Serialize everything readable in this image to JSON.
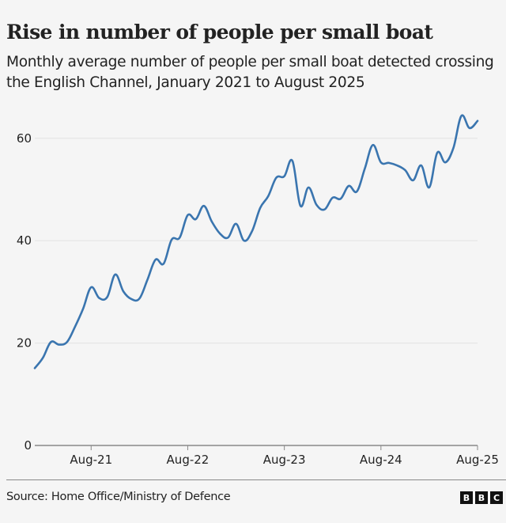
{
  "header": {
    "title": "Rise in number of people per small boat",
    "subtitle": "Monthly average number of people per small boat detected crossing the English Channel, January 2021 to August 2025"
  },
  "footer": {
    "source": "Source: Home Office/Ministry of Defence",
    "logo_letters": [
      "B",
      "B",
      "C"
    ]
  },
  "colors": {
    "line": "#3a75af",
    "gridline": "#e3e3e3",
    "axis": "#8a8a8a",
    "background": "#f5f5f5"
  },
  "chart_data": {
    "type": "line",
    "title": "Rise in number of people per small boat",
    "subtitle": "Monthly average number of people per small boat detected crossing the English Channel, January 2021 to August 2025",
    "xlabel": "",
    "ylabel": "",
    "ylim": [
      0,
      65
    ],
    "yticks": [
      0,
      20,
      40,
      60
    ],
    "xticks": [
      {
        "label": "Aug-21",
        "index": 7
      },
      {
        "label": "Aug-22",
        "index": 19
      },
      {
        "label": "Aug-23",
        "index": 31
      },
      {
        "label": "Aug-24",
        "index": 43
      },
      {
        "label": "Aug-25",
        "index": 55
      }
    ],
    "grid": true,
    "legend": "none",
    "x": [
      "Jan-21",
      "Feb-21",
      "Mar-21",
      "Apr-21",
      "May-21",
      "Jun-21",
      "Jul-21",
      "Aug-21",
      "Sep-21",
      "Oct-21",
      "Nov-21",
      "Dec-21",
      "Jan-22",
      "Feb-22",
      "Mar-22",
      "Apr-22",
      "May-22",
      "Jun-22",
      "Jul-22",
      "Aug-22",
      "Sep-22",
      "Oct-22",
      "Nov-22",
      "Dec-22",
      "Jan-23",
      "Feb-23",
      "Mar-23",
      "Apr-23",
      "May-23",
      "Jun-23",
      "Jul-23",
      "Aug-23",
      "Sep-23",
      "Oct-23",
      "Nov-23",
      "Dec-23",
      "Jan-24",
      "Feb-24",
      "Mar-24",
      "Apr-24",
      "May-24",
      "Jun-24",
      "Jul-24",
      "Aug-24",
      "Sep-24",
      "Oct-24",
      "Nov-24",
      "Dec-24",
      "Jan-25",
      "Feb-25",
      "Mar-25",
      "Apr-25",
      "May-25",
      "Jun-25",
      "Jul-25",
      "Aug-25"
    ],
    "series": [
      {
        "name": "People per small boat",
        "values": [
          15.1,
          17.1,
          20.2,
          19.7,
          20.2,
          23.2,
          26.7,
          30.9,
          28.8,
          29.0,
          33.4,
          30.1,
          28.6,
          28.7,
          32.4,
          36.3,
          35.5,
          40.2,
          40.6,
          45.0,
          44.2,
          46.8,
          43.7,
          41.4,
          40.6,
          43.3,
          40.0,
          41.9,
          46.4,
          48.7,
          52.3,
          52.6,
          55.6,
          46.8,
          50.4,
          47.0,
          46.1,
          48.4,
          48.2,
          50.7,
          49.6,
          54.1,
          58.7,
          55.3,
          55.2,
          54.7,
          53.8,
          51.8,
          54.7,
          50.4,
          57.2,
          55.3,
          58.1,
          64.4,
          62.0,
          63.4
        ]
      }
    ]
  }
}
